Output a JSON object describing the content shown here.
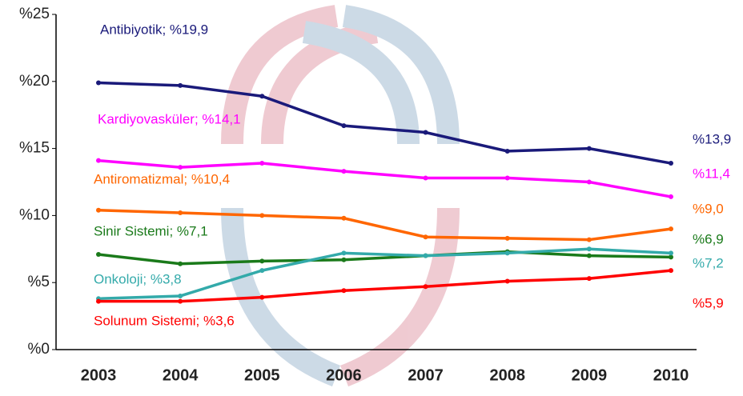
{
  "chart_data": {
    "type": "line",
    "categories": [
      "2003",
      "2004",
      "2005",
      "2006",
      "2007",
      "2008",
      "2009",
      "2010"
    ],
    "ylim": [
      0,
      25
    ],
    "yticks": [
      {
        "value": 0,
        "label": "%0"
      },
      {
        "value": 5,
        "label": "%5"
      },
      {
        "value": 10,
        "label": "%10"
      },
      {
        "value": 15,
        "label": "%15"
      },
      {
        "value": 20,
        "label": "%20"
      },
      {
        "value": 25,
        "label": "%25"
      }
    ],
    "series": [
      {
        "name": "Antibiyotik; %19,9",
        "color": "#1a1a7a",
        "values": [
          19.9,
          19.7,
          18.9,
          16.7,
          16.2,
          14.8,
          15.0,
          13.9
        ],
        "value_labels": [
          null,
          null,
          null,
          null,
          null,
          null,
          null,
          "%13,9"
        ]
      },
      {
        "name": "Kardiyovasküler; %14,1",
        "color": "#ff00ff",
        "values": [
          14.1,
          13.6,
          13.9,
          13.3,
          12.8,
          12.8,
          12.5,
          11.4
        ],
        "value_labels": [
          null,
          null,
          null,
          null,
          null,
          null,
          null,
          "%11,4"
        ]
      },
      {
        "name": "Antiromatizmal; %10,4",
        "color": "#ff6600",
        "values": [
          10.4,
          10.2,
          10.0,
          9.8,
          8.4,
          8.3,
          8.2,
          9.0
        ],
        "value_labels": [
          null,
          null,
          null,
          null,
          null,
          null,
          null,
          "%9,0"
        ]
      },
      {
        "name": "Sinir Sistemi; %7,1",
        "color": "#1a7a1a",
        "values": [
          7.1,
          6.4,
          6.6,
          6.7,
          7.0,
          7.3,
          7.0,
          6.9
        ],
        "value_labels": [
          null,
          null,
          null,
          null,
          null,
          null,
          null,
          "%6,9"
        ]
      },
      {
        "name": "Onkoloji; %3,8",
        "color": "#33aaaa",
        "values": [
          3.8,
          4.0,
          5.9,
          7.2,
          7.0,
          7.2,
          7.5,
          7.2
        ],
        "value_labels": [
          null,
          null,
          null,
          null,
          null,
          null,
          null,
          "%7,2"
        ]
      },
      {
        "name": "Solunum Sistemi; %3,6",
        "color": "#ff0000",
        "values": [
          3.6,
          3.6,
          3.9,
          4.4,
          4.7,
          5.1,
          5.3,
          5.9
        ],
        "value_labels": [
          null,
          null,
          null,
          null,
          null,
          null,
          null,
          "%5,9"
        ]
      }
    ]
  }
}
